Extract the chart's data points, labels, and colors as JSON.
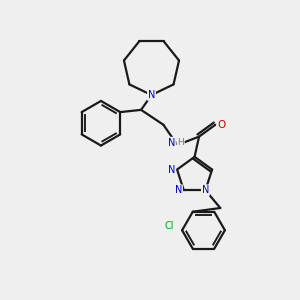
{
  "bg_color": "#efefef",
  "atom_color_N": "#0000cc",
  "atom_color_O": "#cc0000",
  "atom_color_Cl": "#00aa00",
  "bond_color": "#1a1a1a",
  "line_width": 1.6,
  "fig_size": [
    3.0,
    3.0
  ],
  "dpi": 100,
  "xlim": [
    0,
    10
  ],
  "ylim": [
    0,
    10
  ]
}
